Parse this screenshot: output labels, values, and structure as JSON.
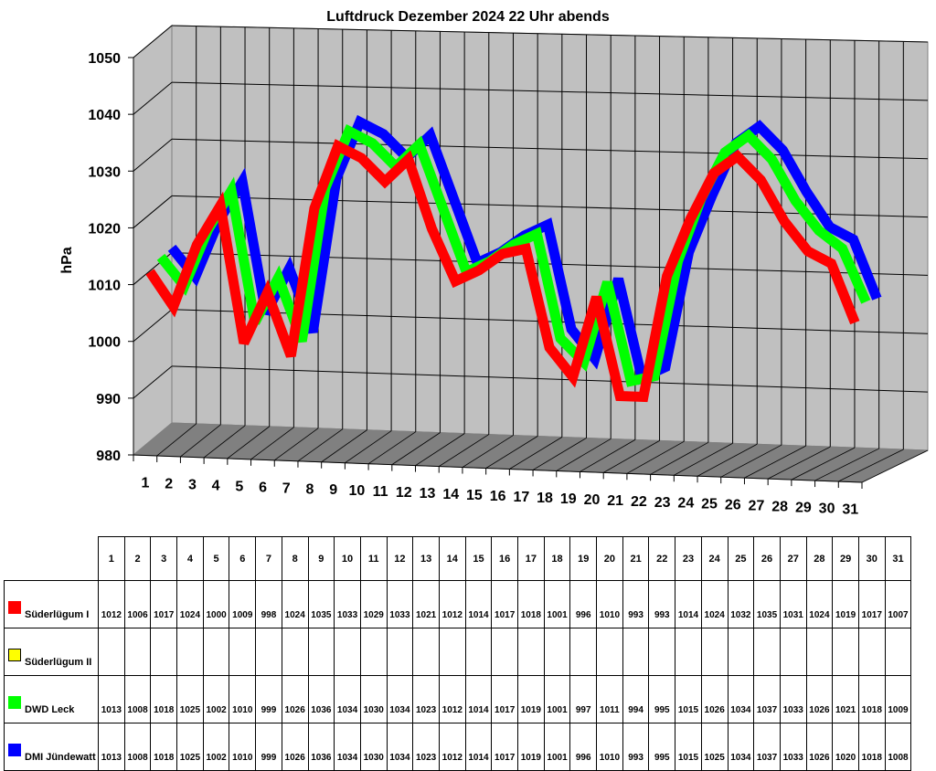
{
  "chart_data": {
    "type": "line",
    "title": "Luftdruck Dezember 2024 22 Uhr abends",
    "xlabel": "",
    "ylabel": "hPa",
    "ylim": [
      980,
      1050
    ],
    "yticks": [
      980,
      990,
      1000,
      1010,
      1020,
      1030,
      1040,
      1050
    ],
    "grid": true,
    "style": "3d-ribbon",
    "legend_position": "table-below",
    "categories": [
      "1",
      "2",
      "3",
      "4",
      "5",
      "6",
      "7",
      "8",
      "9",
      "10",
      "11",
      "12",
      "13",
      "14",
      "15",
      "16",
      "17",
      "18",
      "19",
      "20",
      "21",
      "22",
      "23",
      "24",
      "25",
      "26",
      "27",
      "28",
      "29",
      "30",
      "31"
    ],
    "series": [
      {
        "name": "Süderlügum I",
        "color": "#ff0000",
        "values": [
          1012,
          1006,
          1017,
          1024,
          1000,
          1009,
          998,
          1024,
          1035,
          1033,
          1029,
          1033,
          1021,
          1012,
          1014,
          1017,
          1018,
          1001,
          996,
          1010,
          993,
          993,
          1014,
          1024,
          1032,
          1035,
          1031,
          1024,
          1019,
          1017,
          1007
        ]
      },
      {
        "name": "Süderlügum II",
        "color": "#ffff00",
        "values": [
          null,
          null,
          null,
          null,
          null,
          null,
          null,
          null,
          null,
          null,
          null,
          null,
          null,
          null,
          null,
          null,
          null,
          null,
          null,
          null,
          null,
          null,
          null,
          null,
          null,
          null,
          null,
          null,
          null,
          null,
          null
        ]
      },
      {
        "name": "DWD Leck",
        "color": "#00ff00",
        "values": [
          1013,
          1008,
          1018,
          1025,
          1002,
          1010,
          999,
          1026,
          1036,
          1034,
          1030,
          1034,
          1023,
          1012,
          1014,
          1017,
          1019,
          1001,
          997,
          1011,
          994,
          995,
          1015,
          1026,
          1034,
          1037,
          1033,
          1026,
          1021,
          1018,
          1009
        ]
      },
      {
        "name": "DMI Jündewatt",
        "color": "#0000ff",
        "values": [
          1013,
          1008,
          1018,
          1025,
          1002,
          1010,
          999,
          1026,
          1036,
          1034,
          1030,
          1034,
          1023,
          1012,
          1014,
          1017,
          1019,
          1001,
          996,
          1010,
          993,
          995,
          1015,
          1025,
          1034,
          1037,
          1033,
          1026,
          1020,
          1018,
          1008
        ]
      }
    ]
  },
  "colors": {
    "wall": "#c0c0c0",
    "floor": "#808080",
    "grid": "#000000"
  }
}
